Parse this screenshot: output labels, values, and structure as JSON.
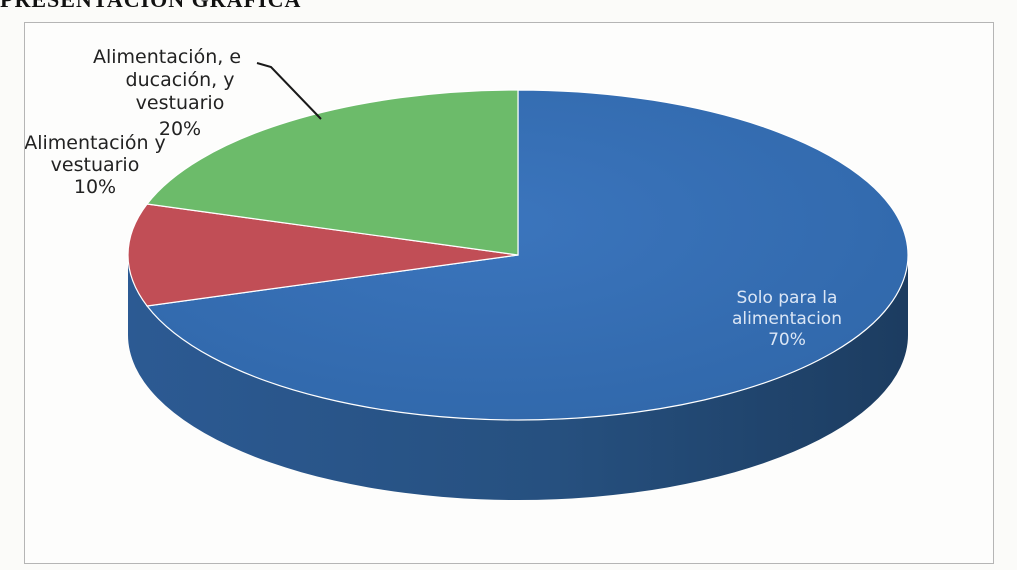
{
  "page": {
    "heading_fragment": "PRESENTACIÓN GRÁFICA"
  },
  "chart_data": {
    "type": "pie",
    "title": "",
    "categories": [
      "Solo para la alimentación",
      "Alimentación y vestuario",
      "Alimentación, educación, y vestuario"
    ],
    "values": [
      70,
      10,
      20
    ],
    "colors": [
      "#3366aa",
      "#c14e56",
      "#6cbb6a"
    ],
    "data_labels": [
      {
        "lines": [
          "Solo para la",
          "alimentacion",
          "70%"
        ]
      },
      {
        "lines": [
          "Alimentación y",
          "vestuario",
          "10%"
        ]
      },
      {
        "lines": [
          "Alimentación, e",
          "ducación, y",
          "vestuario",
          "20%"
        ]
      }
    ],
    "legend": "none",
    "style": "3d"
  }
}
